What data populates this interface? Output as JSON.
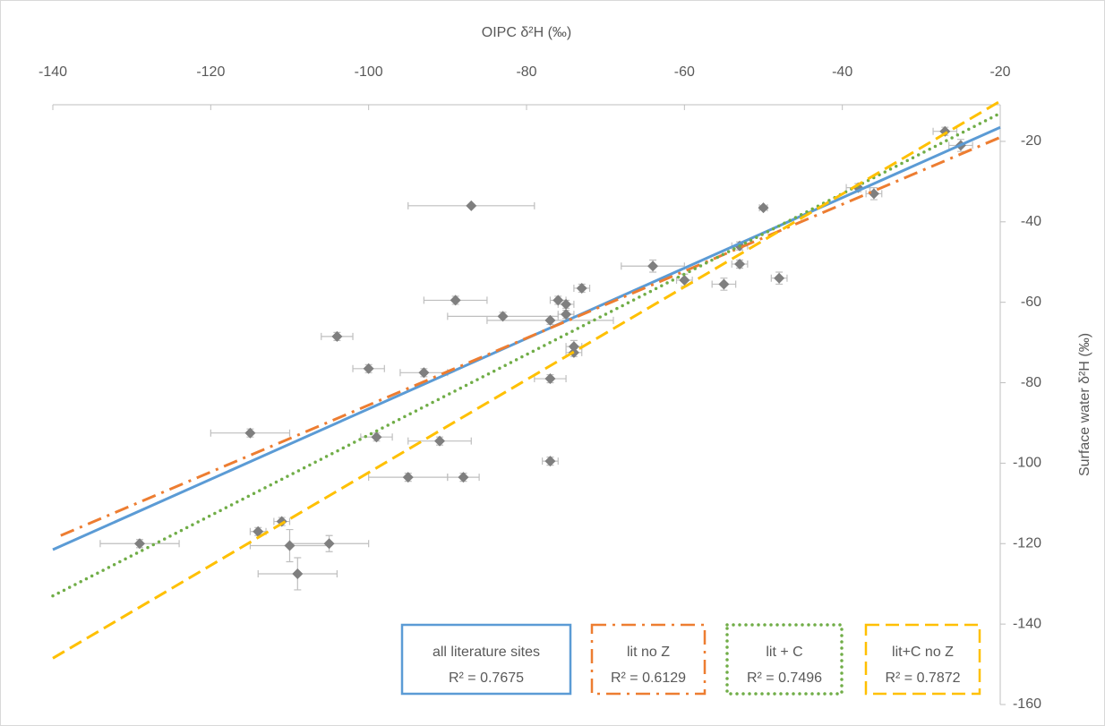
{
  "chart_data": {
    "type": "scatter",
    "x_label": "OIPC δ²H (‰)",
    "y_label": "Surface water δ²H (‰)",
    "xlim": [
      -140,
      -20
    ],
    "xticks": [
      -140,
      -120,
      -100,
      -80,
      -60,
      -40,
      -20
    ],
    "ylim": [
      -160,
      -10
    ],
    "yticks": [
      -160,
      -140,
      -120,
      -100,
      -80,
      -60,
      -40,
      -20
    ],
    "color": "#7f7f7f",
    "error_color": "#bfbfbf",
    "x": [
      -87,
      -50,
      -38,
      -36,
      -27,
      -25,
      -53,
      -53,
      -48,
      -55,
      -60,
      -64,
      -73,
      -76,
      -75,
      -75,
      -77,
      -83,
      -89,
      -104,
      -100,
      -93,
      -74,
      -74,
      -77,
      -115,
      -99,
      -91,
      -77,
      -95,
      -88,
      -129,
      -114,
      -111,
      -110,
      -105,
      -109
    ],
    "values": [
      -36,
      -36.5,
      -31.5,
      -33,
      -17.5,
      -21,
      -46,
      -50.5,
      -54,
      -55.5,
      -54.5,
      -51,
      -56.5,
      -59.5,
      -60.5,
      -63,
      -64.5,
      -63.5,
      -59.5,
      -68.5,
      -76.5,
      -77.5,
      -71,
      -72.5,
      -79,
      -92.5,
      -93.5,
      -94.5,
      -99.5,
      -103.5,
      -103.5,
      -120,
      -117,
      -114.5,
      -120.5,
      -120,
      -127.5
    ],
    "x_error": [
      8,
      0.5,
      1.5,
      1,
      1.5,
      1.5,
      1,
      1,
      1,
      1.5,
      1,
      4,
      1,
      1,
      1,
      1,
      8,
      7,
      4,
      2,
      2,
      3,
      1,
      1,
      2,
      5,
      2,
      4,
      1,
      5,
      2,
      5,
      1,
      1,
      5,
      5,
      5
    ],
    "y_error": [
      0,
      0.5,
      1,
      1.5,
      1,
      1.5,
      1,
      1,
      1.5,
      1.5,
      1.5,
      1.5,
      1,
      1,
      1,
      1,
      1,
      1,
      1,
      1,
      1,
      1,
      1.5,
      1,
      1,
      1,
      1,
      1,
      1,
      1,
      1,
      1,
      1,
      1,
      4,
      2,
      4
    ],
    "trendlines": [
      {
        "name": "all literature sites",
        "r2_label": "R² = 0.7675",
        "color": "#5b9bd5",
        "style": "solid",
        "x": [
          -140,
          -20
        ],
        "values": [
          -121.5,
          -16.5
        ]
      },
      {
        "name": "lit no Z",
        "r2_label": "R² = 0.6129",
        "color": "#ed7d31",
        "style": "dashdot",
        "x": [
          -139,
          -20
        ],
        "values": [
          -118,
          -19
        ]
      },
      {
        "name": "lit + C",
        "r2_label": "R² = 0.7496",
        "color": "#70ad47",
        "style": "dot",
        "x": [
          -140,
          -20
        ],
        "values": [
          -133,
          -13
        ]
      },
      {
        "name": "lit+C no Z",
        "r2_label": "R² = 0.7872",
        "color": "#ffc000",
        "style": "dash",
        "x": [
          -140,
          -20
        ],
        "values": [
          -148.5,
          -10
        ]
      }
    ]
  }
}
